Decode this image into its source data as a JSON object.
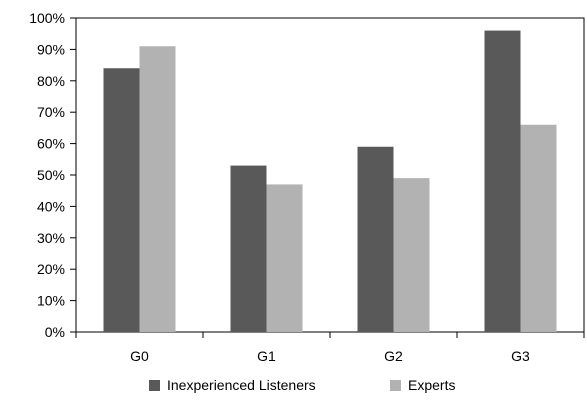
{
  "chart_data": {
    "type": "bar",
    "categories": [
      "G0",
      "G1",
      "G2",
      "G3"
    ],
    "series": [
      {
        "name": "Inexperienced Listeners",
        "values": [
          0.84,
          0.53,
          0.59,
          0.96
        ],
        "color": "#595959"
      },
      {
        "name": "Experts",
        "values": [
          0.91,
          0.47,
          0.49,
          0.66
        ],
        "color": "#b2b2b2"
      }
    ],
    "ylim": [
      0,
      1
    ],
    "y_ticks": [
      0,
      0.1,
      0.2,
      0.3,
      0.4,
      0.5,
      0.6,
      0.7,
      0.8,
      0.9,
      1.0
    ],
    "y_tick_labels": [
      "0%",
      "10%",
      "20%",
      "30%",
      "40%",
      "50%",
      "60%",
      "70%",
      "80%",
      "90%",
      "100%"
    ],
    "title": "",
    "xlabel": "",
    "ylabel": "",
    "grid": false,
    "legend_position": "bottom"
  }
}
